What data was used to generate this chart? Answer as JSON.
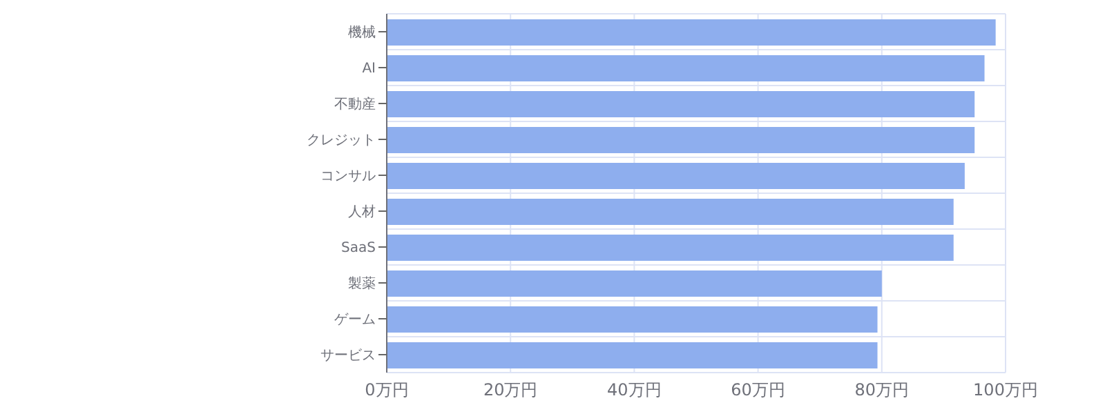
{
  "chart_data": {
    "type": "bar",
    "orientation": "horizontal",
    "categories": [
      "機械",
      "AI",
      "不動産",
      "クレジット",
      "コンサル",
      "人材",
      "SaaS",
      "製薬",
      "ゲーム",
      "サービス"
    ],
    "values": [
      98.4,
      96.6,
      95,
      95,
      93.4,
      91.6,
      91.6,
      80,
      79.3,
      79.3
    ],
    "color": "#8eaeee",
    "xlim": [
      0,
      100
    ],
    "xticks": [
      {
        "value": 0,
        "label": "0万円"
      },
      {
        "value": 20,
        "label": "20万円"
      },
      {
        "value": 40,
        "label": "40万円"
      },
      {
        "value": 60,
        "label": "60万円"
      },
      {
        "value": 80,
        "label": "80万円"
      },
      {
        "value": 100,
        "label": "100万円"
      }
    ],
    "grid": true
  }
}
